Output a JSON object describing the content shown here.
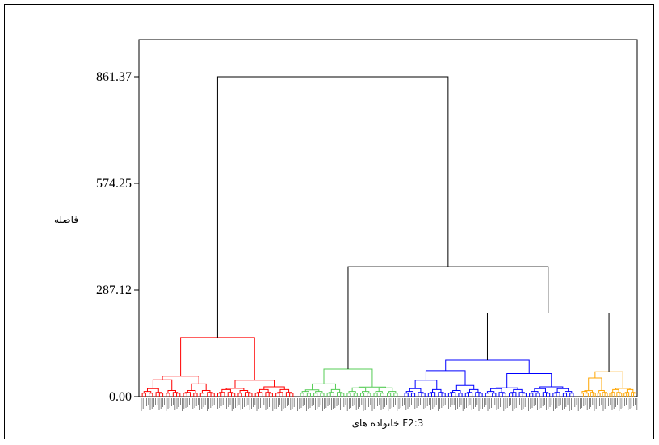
{
  "chart_data": {
    "type": "dendrogram",
    "ylabel": "فاصله",
    "xlabel": "خانواده های F2:3",
    "y_ticks": [
      "0.00",
      "287.12",
      "574.25",
      "861.37"
    ],
    "y_tick_values": [
      0.0,
      287.12,
      574.25,
      861.37
    ],
    "ylim": [
      0,
      861.37
    ],
    "grid": false,
    "clusters": [
      {
        "color": "#ff0000",
        "height": 159,
        "sub_heights": [
          55,
          44,
          45,
          34,
          22
        ]
      },
      {
        "color": "#55cc55",
        "height": 74,
        "sub_heights": [
          34,
          23,
          18
        ]
      },
      {
        "color": "#0000ff",
        "height": 98,
        "sub_heights": [
          70,
          62,
          44,
          30,
          20
        ]
      },
      {
        "color": "#ffa500",
        "height": 67,
        "sub_heights": [
          50,
          22,
          14
        ]
      }
    ],
    "merges": [
      {
        "left": "red",
        "right": "green+blue+orange",
        "height": 861.37
      },
      {
        "left": "green",
        "right": "blue+orange",
        "height": 350
      },
      {
        "left": "blue",
        "right": "orange",
        "height": 225
      }
    ]
  }
}
